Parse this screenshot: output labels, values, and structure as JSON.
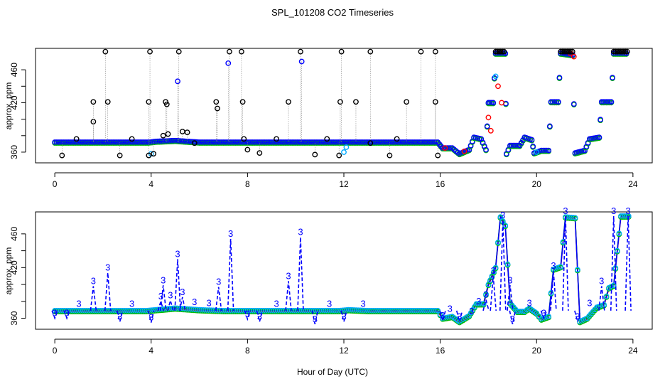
{
  "chart_data": {
    "title": "SPL_101208  CO2 Timeseries",
    "xlabel": "Hour of Day (UTC)",
    "ylabel": "approx. ppm",
    "xlim": [
      -0.8,
      24.8
    ],
    "xticks": [
      0,
      4,
      8,
      12,
      16,
      20,
      24
    ],
    "yticks": [
      360,
      380,
      400,
      420,
      440,
      460
    ],
    "ytick_labels": [
      "360",
      "",
      "420",
      "",
      "460"
    ],
    "ytick_values": [
      360,
      390,
      420,
      440,
      460
    ],
    "colors": {
      "black": "#000000",
      "blue": "#0000ff",
      "red": "#ff0000",
      "green": "#00bb00",
      "cyan": "#00aaff"
    },
    "panels": [
      {
        "name": "top",
        "type": "scatter",
        "ylim": [
          347,
          486
        ],
        "baseline": [
          [
            0,
            372
          ],
          [
            1,
            372
          ],
          [
            2,
            372
          ],
          [
            3,
            372
          ],
          [
            3.9,
            372
          ],
          [
            4.2,
            373
          ],
          [
            5,
            374
          ],
          [
            6,
            372
          ],
          [
            7,
            372
          ],
          [
            8,
            372
          ],
          [
            9,
            372
          ],
          [
            10,
            372
          ],
          [
            11,
            372
          ],
          [
            12,
            372
          ],
          [
            13,
            372
          ],
          [
            14,
            372
          ],
          [
            15,
            372
          ],
          [
            15.9,
            372
          ],
          [
            16.1,
            365
          ],
          [
            16.5,
            365
          ],
          [
            16.8,
            358
          ],
          [
            17.2,
            363
          ],
          [
            17.4,
            378
          ],
          [
            17.7,
            376
          ],
          [
            17.9,
            363
          ],
          [
            18.0,
            420
          ],
          [
            18.2,
            420
          ],
          [
            18.3,
            480
          ],
          [
            18.7,
            480
          ],
          [
            18.75,
            358
          ],
          [
            18.9,
            368
          ],
          [
            19.3,
            368
          ],
          [
            19.5,
            378
          ],
          [
            19.8,
            375
          ],
          [
            19.9,
            359
          ],
          [
            20.2,
            362
          ],
          [
            20.5,
            362
          ],
          [
            20.6,
            421
          ],
          [
            20.9,
            421
          ],
          [
            21.0,
            480
          ],
          [
            21.5,
            478
          ],
          [
            21.6,
            359
          ],
          [
            22.0,
            362
          ],
          [
            22.2,
            376
          ],
          [
            22.6,
            378
          ],
          [
            22.7,
            421
          ],
          [
            23.1,
            421
          ],
          [
            23.2,
            480
          ],
          [
            23.8,
            480
          ]
        ],
        "spikes": [
          [
            0.3,
            356
          ],
          [
            0.9,
            376
          ],
          [
            1.6,
            397
          ],
          [
            1.6,
            421
          ],
          [
            2.1,
            482
          ],
          [
            2.2,
            421
          ],
          [
            2.7,
            356
          ],
          [
            3.2,
            376
          ],
          [
            3.9,
            356
          ],
          [
            3.9,
            421
          ],
          [
            3.95,
            482
          ],
          [
            4.1,
            358
          ],
          [
            4.5,
            380
          ],
          [
            4.6,
            421
          ],
          [
            4.65,
            418
          ],
          [
            4.7,
            382
          ],
          [
            5.1,
            446
          ],
          [
            5.15,
            482
          ],
          [
            5.3,
            385
          ],
          [
            5.5,
            384
          ],
          [
            5.8,
            371
          ],
          [
            6.7,
            421
          ],
          [
            6.75,
            413
          ],
          [
            7.2,
            468
          ],
          [
            7.25,
            482
          ],
          [
            7.75,
            482
          ],
          [
            7.8,
            421
          ],
          [
            7.85,
            376
          ],
          [
            8.0,
            363
          ],
          [
            8.5,
            359
          ],
          [
            9.2,
            376
          ],
          [
            9.7,
            421
          ],
          [
            10.2,
            482
          ],
          [
            10.25,
            470
          ],
          [
            10.8,
            357
          ],
          [
            11.3,
            376
          ],
          [
            11.8,
            356
          ],
          [
            11.85,
            421
          ],
          [
            11.9,
            482
          ],
          [
            12.5,
            421
          ],
          [
            13.1,
            482
          ],
          [
            13.1,
            371
          ],
          [
            13.9,
            356
          ],
          [
            14.2,
            376
          ],
          [
            14.6,
            421
          ],
          [
            15.2,
            482
          ],
          [
            15.8,
            482
          ],
          [
            15.8,
            421
          ],
          [
            15.9,
            356
          ]
        ]
      },
      {
        "name": "bottom",
        "type": "line",
        "ylim": [
          347,
          486
        ],
        "marker_label": "3",
        "spikes": [
          [
            0.0,
            360
          ],
          [
            0.5,
            360
          ],
          [
            1.0,
            371
          ],
          [
            1.6,
            398
          ],
          [
            2.2,
            414
          ],
          [
            2.7,
            356
          ],
          [
            3.2,
            371
          ],
          [
            4.0,
            355
          ],
          [
            4.4,
            380
          ],
          [
            4.5,
            399
          ],
          [
            4.8,
            381
          ],
          [
            5.1,
            430
          ],
          [
            5.3,
            385
          ],
          [
            5.8,
            373
          ],
          [
            6.4,
            372
          ],
          [
            6.8,
            397
          ],
          [
            7.3,
            454
          ],
          [
            8.0,
            359
          ],
          [
            8.5,
            356
          ],
          [
            9.2,
            371
          ],
          [
            9.7,
            404
          ],
          [
            10.2,
            456
          ],
          [
            10.8,
            353
          ],
          [
            11.4,
            371
          ],
          [
            12.0,
            356
          ],
          [
            12.8,
            371
          ],
          [
            16.1,
            357
          ],
          [
            16.4,
            365
          ],
          [
            16.8,
            356
          ],
          [
            17.3,
            362
          ],
          [
            17.6,
            374
          ],
          [
            17.9,
            382
          ],
          [
            18.2,
            410
          ],
          [
            18.6,
            476
          ],
          [
            18.9,
            399
          ],
          [
            19.0,
            353
          ],
          [
            19.7,
            372
          ],
          [
            20.3,
            360
          ],
          [
            20.7,
            416
          ],
          [
            21.2,
            481
          ],
          [
            21.7,
            356
          ],
          [
            22.2,
            372
          ],
          [
            22.7,
            398
          ],
          [
            23.2,
            481
          ],
          [
            23.8,
            481
          ]
        ],
        "baseline": [
          [
            0,
            369
          ],
          [
            1,
            369
          ],
          [
            2,
            369
          ],
          [
            3,
            369
          ],
          [
            3.8,
            369
          ],
          [
            4.2,
            370
          ],
          [
            5,
            372
          ],
          [
            6,
            370
          ],
          [
            7,
            369
          ],
          [
            8,
            369
          ],
          [
            9,
            369
          ],
          [
            10,
            369
          ],
          [
            11,
            369
          ],
          [
            11.8,
            369
          ],
          [
            12.2,
            370
          ],
          [
            13,
            369
          ],
          [
            14,
            369
          ],
          [
            15,
            369
          ],
          [
            15.9,
            369
          ],
          [
            16.1,
            360
          ],
          [
            16.5,
            362
          ],
          [
            16.8,
            356
          ],
          [
            17.2,
            363
          ],
          [
            17.5,
            377
          ],
          [
            17.8,
            377
          ],
          [
            18.0,
            400
          ],
          [
            18.3,
            420
          ],
          [
            18.5,
            480
          ],
          [
            18.7,
            470
          ],
          [
            18.9,
            378
          ],
          [
            19.2,
            368
          ],
          [
            19.5,
            368
          ],
          [
            19.7,
            372
          ],
          [
            20.0,
            366
          ],
          [
            20.2,
            359
          ],
          [
            20.5,
            362
          ],
          [
            20.7,
            418
          ],
          [
            21.0,
            421
          ],
          [
            21.2,
            480
          ],
          [
            21.6,
            479
          ],
          [
            21.8,
            356
          ],
          [
            22.1,
            360
          ],
          [
            22.5,
            373
          ],
          [
            22.8,
            376
          ],
          [
            23.0,
            396
          ],
          [
            23.2,
            399
          ],
          [
            23.5,
            481
          ],
          [
            23.9,
            481
          ]
        ]
      }
    ]
  }
}
